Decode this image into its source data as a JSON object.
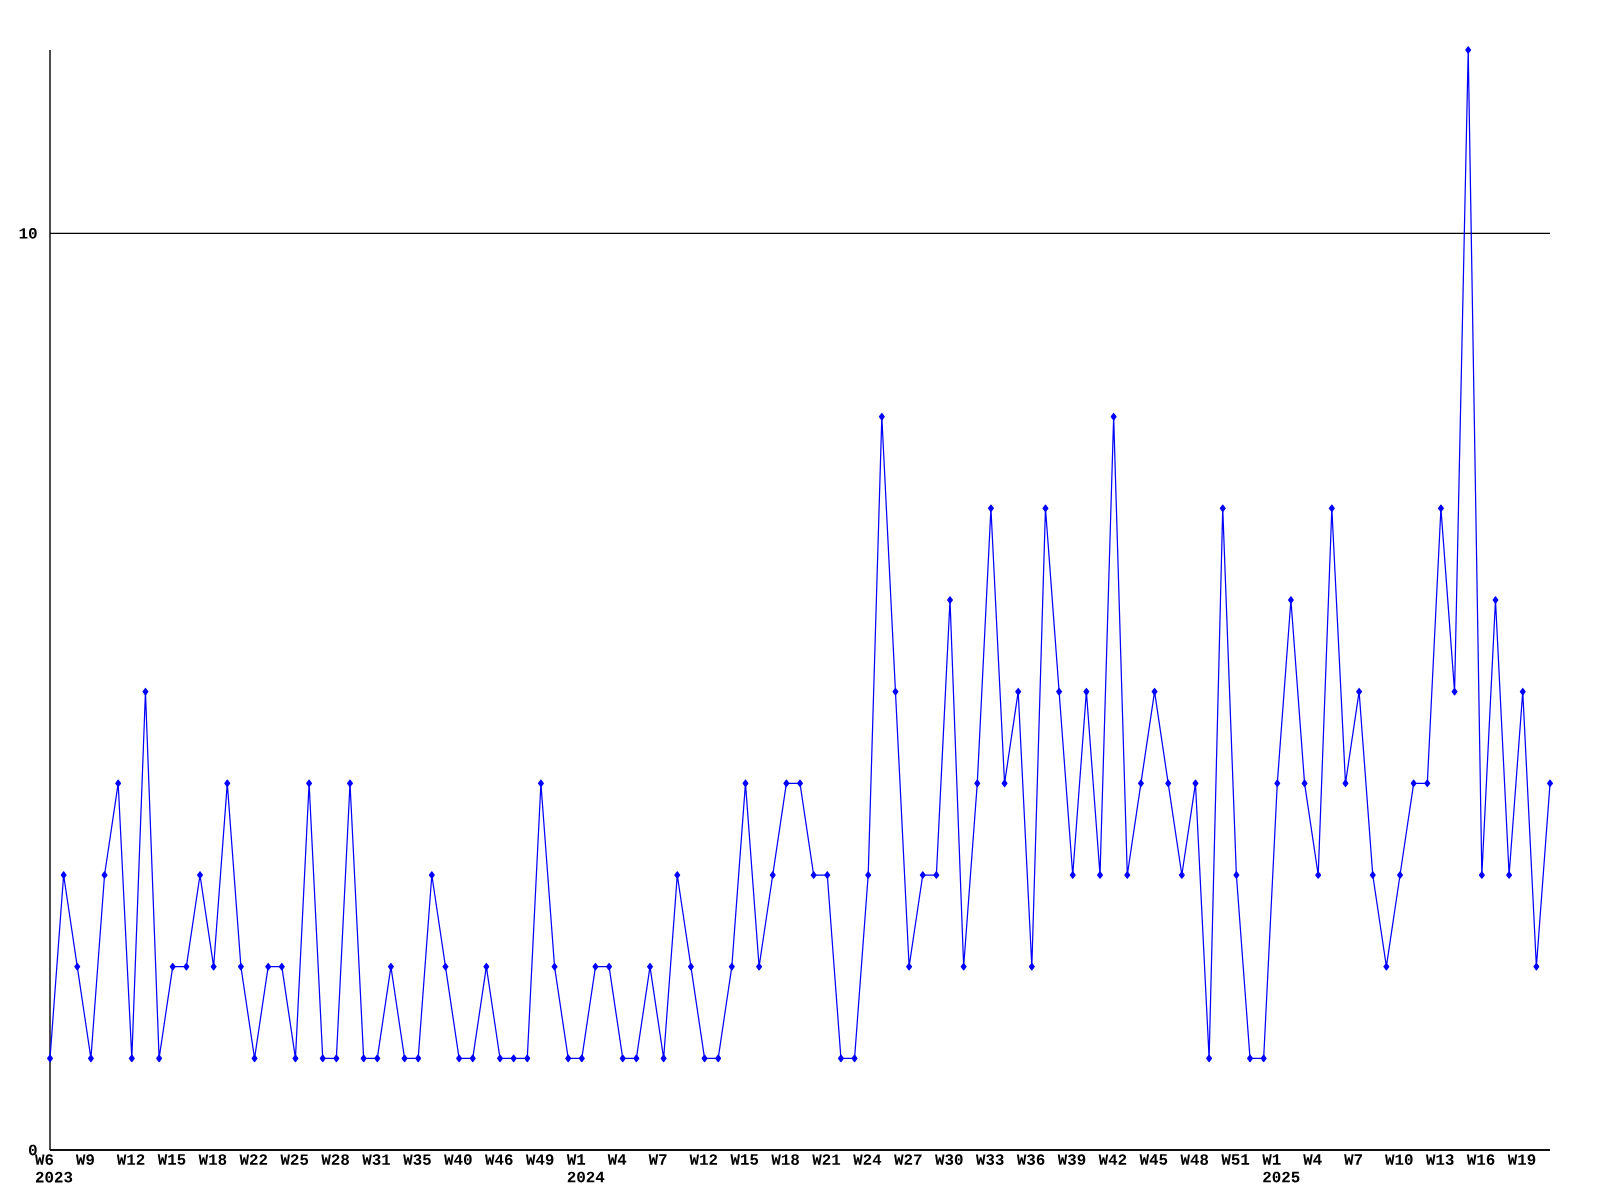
{
  "chart_data": {
    "type": "line",
    "categories": [
      "W6 2023",
      null,
      null,
      "W9",
      null,
      null,
      "W12",
      null,
      null,
      "W15",
      null,
      null,
      "W18",
      null,
      null,
      "W22",
      null,
      null,
      "W25",
      null,
      null,
      "W28",
      null,
      null,
      "W31",
      null,
      null,
      "W35",
      null,
      null,
      "W40",
      null,
      null,
      "W46",
      null,
      null,
      "W49",
      null,
      null,
      "W1 2024",
      null,
      null,
      "W4",
      null,
      null,
      "W7",
      null,
      null,
      "W12",
      null,
      null,
      "W15",
      null,
      null,
      "W18",
      null,
      null,
      "W21",
      null,
      null,
      "W24",
      null,
      null,
      "W27",
      null,
      null,
      "W30",
      null,
      null,
      "W33",
      null,
      null,
      "W36",
      null,
      null,
      "W39",
      null,
      null,
      "W42",
      null,
      null,
      "W45",
      null,
      null,
      "W48",
      null,
      null,
      "W51",
      null,
      null,
      "W1 2025",
      null,
      null,
      "W4",
      null,
      null,
      "W7",
      null,
      null,
      "W10",
      null,
      null,
      "W13",
      null,
      null,
      "W16",
      null,
      null,
      "W19",
      null,
      null
    ],
    "series": [
      {
        "color": "#0000ff",
        "values": [
          1,
          3,
          2,
          1,
          3,
          4,
          1,
          5,
          1,
          2,
          2,
          3,
          2,
          4,
          2,
          1,
          2,
          2,
          1,
          4,
          1,
          1,
          4,
          1,
          1,
          2,
          1,
          1,
          3,
          2,
          1,
          1,
          2,
          1,
          1,
          1,
          4,
          2,
          1,
          1,
          2,
          2,
          1,
          1,
          2,
          1,
          3,
          2,
          1,
          1,
          2,
          4,
          2,
          3,
          4,
          4,
          3,
          3,
          1,
          1,
          3,
          8,
          5,
          2,
          3,
          3,
          6,
          2,
          4,
          7,
          4,
          5,
          2,
          7,
          5,
          3,
          5,
          3,
          8,
          3,
          4,
          5,
          4,
          3,
          4,
          1,
          7,
          3,
          1,
          1,
          4,
          6,
          4,
          3,
          7,
          4,
          5,
          3,
          2,
          3,
          4,
          4,
          7,
          5,
          12,
          3,
          6,
          3,
          5,
          2,
          4
        ]
      }
    ],
    "ylim": [
      0,
      12
    ],
    "yticks": [
      0,
      10
    ],
    "grid": "y",
    "marker": "diamond",
    "line_style": "solid"
  }
}
